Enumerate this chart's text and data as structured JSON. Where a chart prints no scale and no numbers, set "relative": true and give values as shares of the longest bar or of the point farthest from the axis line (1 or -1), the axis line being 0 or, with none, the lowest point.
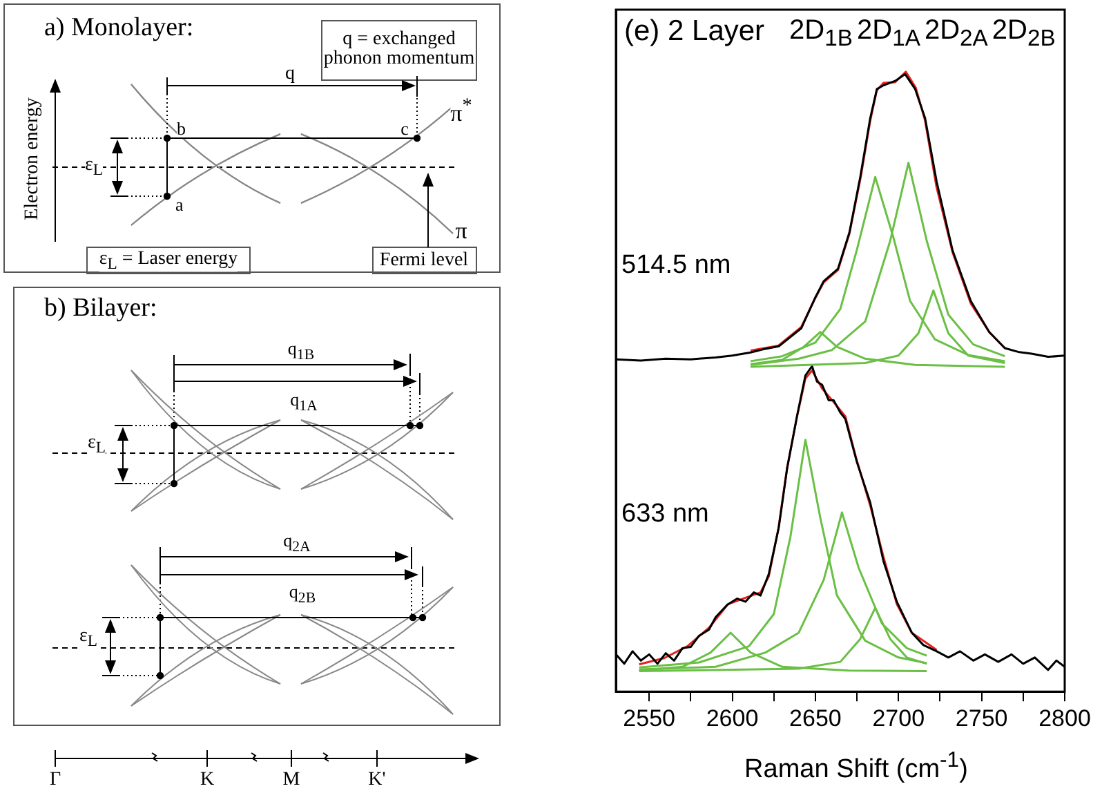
{
  "chart_data": [
    {
      "type": "other",
      "annotations": [
        "a) Monolayer:",
        "q = exchanged phonon momentum",
        "q",
        "π$^{*}$",
        "b",
        "c",
        "a",
        "Electron energy",
        "ε$_{L}$",
        "ε$_{L}$ = Laser energy",
        "Fermi level",
        "π",
        "b) Bilayer:",
        "q$_{1B}$",
        "q$_{1A}$",
        "ε$_{L}$",
        "q$_{2A}$",
        "q$_{2B}$",
        "ε$_{L}$",
        "Γ",
        "K",
        "M",
        "K'"
      ]
    },
    {
      "type": "line",
      "title": "(e) 2 Layer",
      "xlabel": "Raman Shift (cm$^{-1}$)",
      "relative": true,
      "marker": "none",
      "xlim": [
        2530,
        2800
      ],
      "xticks": [
        2550,
        {
          "value": 2575,
          "label": null
        },
        2600,
        {
          "value": 2625,
          "label": null
        },
        2650,
        {
          "value": 2675,
          "label": null
        },
        2700,
        {
          "value": 2725,
          "label": null
        },
        2750,
        {
          "value": 2775,
          "label": null
        },
        2800
      ],
      "annotations": [
        "2D$_{1B}$",
        "2D$_{1A}$",
        "2D$_{2A}$",
        "2D$_{2B}$",
        "514.5 nm",
        "633 nm"
      ],
      "series": [
        {
          "color": "#000000",
          "x": [
            2530,
            2545,
            2560,
            2575,
            2590,
            2600,
            2611,
            2620,
            2628,
            2641.5,
            2650,
            2655,
            2663.6,
            2670.5,
            2677,
            2683,
            2687,
            2691,
            2698,
            2704,
            2710,
            2716,
            2723,
            2732.5,
            2743.5,
            2754.6,
            2764,
            2772,
            2780,
            2790,
            2800
          ],
          "values": [
            0.536,
            0.534,
            0.537,
            0.536,
            0.539,
            0.542,
            0.547,
            0.553,
            0.557,
            0.586,
            0.636,
            0.662,
            0.682,
            0.741,
            0.83,
            0.925,
            0.972,
            0.978,
            0.985,
            0.996,
            0.972,
            0.925,
            0.822,
            0.712,
            0.63,
            0.58,
            0.554,
            0.548,
            0.545,
            0.54,
            0.542
          ]
        },
        {
          "color": "#e8211f",
          "x": [
            2611,
            2627.7,
            2641.5,
            2649.8,
            2655,
            2663.6,
            2670.5,
            2677.3,
            2683,
            2687,
            2691,
            2698,
            2704.4,
            2710.4,
            2716,
            2722.8,
            2732.5,
            2743.5,
            2754.6,
            2764
          ],
          "values": [
            0.55,
            0.558,
            0.588,
            0.634,
            0.66,
            0.68,
            0.739,
            0.83,
            0.921,
            0.97,
            0.982,
            0.983,
            1,
            0.974,
            0.921,
            0.815,
            0.709,
            0.626,
            0.58,
            0.554
          ]
        },
        {
          "color": "#6abf45",
          "x": [
            2611,
            2630,
            2643,
            2653,
            2663,
            2680,
            2710,
            2764
          ],
          "values": [
            0.528,
            0.535,
            0.556,
            0.58,
            0.556,
            0.537,
            0.527,
            0.524
          ]
        },
        {
          "color": "#6abf45",
          "x": [
            2611,
            2630,
            2650,
            2665,
            2675,
            2686,
            2697,
            2707,
            2722,
            2742,
            2764
          ],
          "values": [
            0.533,
            0.541,
            0.563,
            0.617,
            0.713,
            0.83,
            0.732,
            0.63,
            0.568,
            0.543,
            0.533
          ]
        },
        {
          "color": "#6abf45",
          "x": [
            2611,
            2640,
            2660,
            2680,
            2695,
            2706,
            2717,
            2730,
            2745,
            2764
          ],
          "values": [
            0.527,
            0.537,
            0.551,
            0.597,
            0.727,
            0.853,
            0.727,
            0.608,
            0.56,
            0.541
          ]
        },
        {
          "color": "#6abf45",
          "x": [
            2611,
            2680,
            2700,
            2712,
            2721,
            2730,
            2742,
            2764
          ],
          "values": [
            0.524,
            0.53,
            0.542,
            0.578,
            0.647,
            0.578,
            0.542,
            0.53
          ]
        },
        {
          "color": "#000000",
          "x": [
            2530,
            2535,
            2540,
            2545,
            2550,
            2555,
            2560,
            2565,
            2570,
            2575,
            2580,
            2586,
            2590,
            2597,
            2603,
            2608,
            2613,
            2617,
            2622,
            2628,
            2633,
            2639,
            2644,
            2648,
            2651,
            2654,
            2658,
            2661,
            2665,
            2668,
            2675,
            2683,
            2691,
            2699,
            2708,
            2715,
            2723,
            2730,
            2737,
            2745,
            2752,
            2760,
            2768,
            2775,
            2782,
            2790,
            2795,
            2800
          ],
          "values": [
            0.06,
            0.045,
            0.065,
            0.05,
            0.06,
            0.045,
            0.062,
            0.05,
            0.07,
            0.072,
            0.09,
            0.1,
            0.12,
            0.14,
            0.15,
            0.145,
            0.16,
            0.155,
            0.19,
            0.265,
            0.36,
            0.445,
            0.51,
            0.525,
            0.5,
            0.495,
            0.47,
            0.47,
            0.45,
            0.44,
            0.37,
            0.305,
            0.21,
            0.145,
            0.095,
            0.075,
            0.065,
            0.055,
            0.065,
            0.05,
            0.06,
            0.048,
            0.06,
            0.045,
            0.055,
            0.035,
            0.05,
            0.04
          ]
        },
        {
          "color": "#e8211f",
          "x": [
            2544,
            2559,
            2573,
            2586,
            2597.5,
            2608.5,
            2617,
            2622,
            2627.7,
            2633,
            2639,
            2644,
            2648,
            2654,
            2661,
            2668,
            2674.6,
            2683,
            2691,
            2699,
            2708,
            2723
          ],
          "values": [
            0.044,
            0.054,
            0.073,
            0.103,
            0.141,
            0.152,
            0.16,
            0.186,
            0.262,
            0.361,
            0.444,
            0.505,
            0.518,
            0.489,
            0.467,
            0.444,
            0.376,
            0.3,
            0.217,
            0.141,
            0.095,
            0.067
          ]
        },
        {
          "color": "#6abf45",
          "x": [
            2544,
            2570,
            2587,
            2599,
            2611,
            2630,
            2670,
            2717
          ],
          "values": [
            0.034,
            0.04,
            0.063,
            0.095,
            0.063,
            0.04,
            0.034,
            0.033
          ]
        },
        {
          "color": "#6abf45",
          "x": [
            2544,
            2580,
            2610,
            2625,
            2635,
            2644,
            2653,
            2663,
            2680,
            2700,
            2717
          ],
          "values": [
            0.039,
            0.047,
            0.073,
            0.125,
            0.25,
            0.406,
            0.28,
            0.155,
            0.082,
            0.055,
            0.046
          ]
        },
        {
          "color": "#6abf45",
          "x": [
            2544,
            2590,
            2620,
            2640,
            2655,
            2666,
            2676,
            2690,
            2705,
            2717
          ],
          "values": [
            0.036,
            0.04,
            0.063,
            0.095,
            0.18,
            0.289,
            0.2,
            0.11,
            0.07,
            0.058
          ]
        },
        {
          "color": "#6abf45",
          "x": [
            2544,
            2640,
            2665,
            2677,
            2686,
            2695,
            2705,
            2717
          ],
          "values": [
            0.033,
            0.037,
            0.048,
            0.085,
            0.135,
            0.085,
            0.055,
            0.045
          ]
        }
      ]
    }
  ]
}
